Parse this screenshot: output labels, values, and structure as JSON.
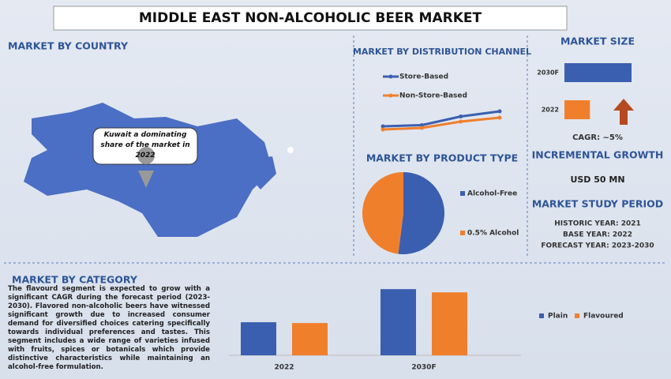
{
  "title": "MIDDLE EAST NON-ALCOHOLIC BEER MARKET",
  "country": {
    "heading": "MARKET BY COUNTRY",
    "callout": "Kuwait a dominating share of the market in 2022"
  },
  "size": {
    "heading": "MARKET SIZE",
    "cagr": "CAGR:  ~5%",
    "growth_heading": "INCREMENTAL GROWTH",
    "growth_value": "USD 50 MN",
    "period_heading": "MARKET STUDY PERIOD",
    "historic": "HISTORIC YEAR: 2021",
    "base": "BASE YEAR: 2022",
    "forecast": "FORECAST YEAR: 2023-2030"
  },
  "category": {
    "heading": "MARKET BY CATEGORY",
    "text": "The flavourd segment is expected to grow with a significant CAGR during the forecast period (2023-2030). Flavored non-alcoholic beers have witnessed significant growth due to increased consumer demand for diversified choices catering specifically towards individual preferences and tastes. This segment includes a wide range of varieties infused with fruits, spices or botanicals which provide distinctive characteristics while maintaining an alcohol-free formulation."
  },
  "chart_data": [
    {
      "type": "line",
      "title": "MARKET BY DISTRIBUTION CHANNEL",
      "categories": [
        null,
        null,
        null,
        null
      ],
      "ylim": [
        0,
        8
      ],
      "series": [
        {
          "name": "Store-Based",
          "color": "#3a5fb0",
          "values": [
            2,
            2.3,
            4.5,
            5.8
          ]
        },
        {
          "name": "Non-Store-Based",
          "color": "#f07f2c",
          "values": [
            1.2,
            1.6,
            3.2,
            4.2
          ]
        }
      ]
    },
    {
      "type": "hbar",
      "categories": [
        "2030F",
        "2022"
      ],
      "values": [
        100,
        38
      ],
      "colors": [
        "#3a5fb0",
        "#f07f2c"
      ],
      "xlim": [
        0,
        100
      ]
    },
    {
      "type": "pie",
      "title": "MARKET BY PRODUCT TYPE",
      "categories": [
        "Alcohol-Free",
        "0.5% Alcohol"
      ],
      "values": [
        52,
        48
      ],
      "colors": [
        "#3a5fb0",
        "#f07f2c"
      ]
    },
    {
      "type": "groupbar",
      "categories": [
        "2022",
        "2030F"
      ],
      "ylim": [
        0,
        90
      ],
      "series": [
        {
          "name": "Plain",
          "color": "#3a5fb0",
          "values": [
            41,
            82
          ]
        },
        {
          "name": "Flavoured",
          "color": "#f07f2c",
          "values": [
            40,
            78
          ]
        }
      ]
    }
  ]
}
